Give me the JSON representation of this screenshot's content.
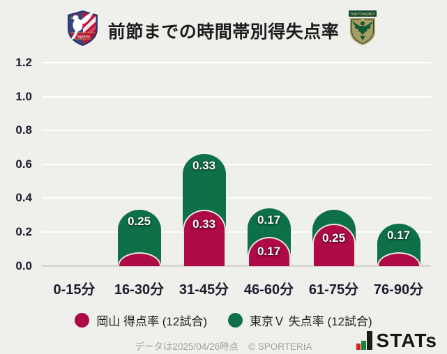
{
  "header": {
    "title": "前節までの時間帯別得失点率",
    "home_team": "岡山",
    "away_team": "東京Ｖ",
    "home_logo_banner": "Fagiano",
    "away_logo_banner": "TOKYOVERDY"
  },
  "chart_data": {
    "type": "bar",
    "subtype": "stacked-rounded-columns",
    "title": "前節までの時間帯別得失点率",
    "categories": [
      "0-15分",
      "16-30分",
      "31-45分",
      "46-60分",
      "61-75分",
      "76-90分"
    ],
    "series": [
      {
        "name": "岡山 得点率 (12試合)",
        "color": "#ad0a46",
        "values": [
          0,
          0.08,
          0.33,
          0.17,
          0.25,
          0.08
        ],
        "labels": [
          "",
          "",
          "0.33",
          "0.17",
          "0.25",
          ""
        ]
      },
      {
        "name": "東京Ｖ 失点率 (12試合)",
        "color": "#0e7046",
        "values": [
          0,
          0.25,
          0.33,
          0.17,
          0.08,
          0.17
        ],
        "labels": [
          "",
          "0.25",
          "0.33",
          "0.17",
          "",
          "0.17"
        ]
      }
    ],
    "stacked": true,
    "y_ticks": [
      "1.2",
      "1.0",
      "0.8",
      "0.6",
      "0.4",
      "0.2",
      "0.0"
    ],
    "ylim": [
      0,
      1.2
    ],
    "xlabel": "",
    "ylabel": "",
    "grid": true,
    "legend_position": "bottom"
  },
  "footer": {
    "note": "データは2025/04/26時点",
    "copyright": "© SPORTERIA",
    "brand": "STATs"
  },
  "colors": {
    "background": "#efefec",
    "home": "#ad0a46",
    "away": "#0e7046",
    "gridline": "#ffffff",
    "baseline": "#d8d7d2",
    "axis_text": "#1c1c2e"
  }
}
